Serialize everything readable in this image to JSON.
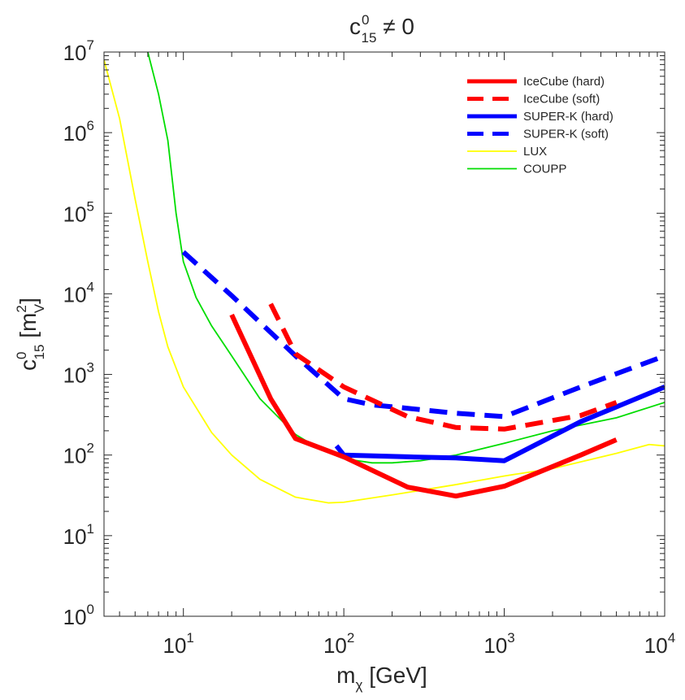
{
  "chart_data": {
    "type": "line",
    "title": {
      "base": "c",
      "sup": "0",
      "sub": "15",
      "rest": " ≠ 0"
    },
    "xlabel": {
      "base": "m",
      "sub": "χ",
      "rest": " [GeV]"
    },
    "ylabel": {
      "base": "c",
      "sup": "0",
      "sub": "15",
      "unit_open": " [m",
      "unit_sup": "2",
      "unit_sub": "V",
      "unit_close": "]"
    },
    "xscale": "log",
    "yscale": "log",
    "xlim": [
      3.2,
      10000
    ],
    "ylim": [
      1,
      10000000
    ],
    "xticks": [
      {
        "value": 10,
        "base": "10",
        "exp": "1"
      },
      {
        "value": 100,
        "base": "10",
        "exp": "2"
      },
      {
        "value": 1000,
        "base": "10",
        "exp": "3"
      },
      {
        "value": 10000,
        "base": "10",
        "exp": "4"
      }
    ],
    "yticks": [
      {
        "value": 1,
        "base": "10",
        "exp": "0"
      },
      {
        "value": 10,
        "base": "10",
        "exp": "1"
      },
      {
        "value": 100,
        "base": "10",
        "exp": "2"
      },
      {
        "value": 1000,
        "base": "10",
        "exp": "3"
      },
      {
        "value": 10000,
        "base": "10",
        "exp": "4"
      },
      {
        "value": 100000,
        "base": "10",
        "exp": "5"
      },
      {
        "value": 1000000,
        "base": "10",
        "exp": "6"
      },
      {
        "value": 10000000,
        "base": "10",
        "exp": "7"
      }
    ],
    "legend_position": "top-right",
    "series": [
      {
        "name": "IceCube (hard)",
        "color": "#ff0000",
        "style": "solid",
        "weight": "thick",
        "x": [
          20,
          35,
          50,
          100,
          250,
          500,
          1000,
          3000,
          5000
        ],
        "y": [
          5500,
          500,
          160,
          95,
          40,
          31,
          41,
          100,
          155
        ]
      },
      {
        "name": "IceCube (soft)",
        "color": "#ff0000",
        "style": "dashed",
        "weight": "thick",
        "x": [
          35,
          50,
          100,
          250,
          500,
          1000,
          3000,
          5000
        ],
        "y": [
          7500,
          1800,
          700,
          300,
          220,
          210,
          310,
          450
        ]
      },
      {
        "name": "SUPER-K (hard)",
        "color": "#0000ff",
        "style": "solid",
        "weight": "thick",
        "x": [
          90,
          100,
          250,
          500,
          1000,
          3000,
          10000
        ],
        "y": [
          130,
          100,
          95,
          92,
          85,
          260,
          700
        ]
      },
      {
        "name": "SUPER-K (soft)",
        "color": "#0000ff",
        "style": "dashed",
        "weight": "thick",
        "x": [
          10,
          20,
          50,
          100,
          150,
          250,
          500,
          1000,
          3000,
          10000
        ],
        "y": [
          33000,
          9500,
          1700,
          500,
          420,
          380,
          330,
          300,
          700,
          1700
        ]
      },
      {
        "name": "LUX",
        "color": "#ffff00",
        "style": "solid",
        "weight": "thin",
        "x": [
          3.2,
          4,
          5,
          6,
          7,
          8,
          10,
          15,
          20,
          30,
          50,
          80,
          100,
          200,
          500,
          1000,
          2000,
          5000,
          8000,
          10000
        ],
        "y": [
          8000000,
          1500000,
          150000,
          25000,
          6000,
          2200,
          700,
          190,
          100,
          50,
          30,
          25.5,
          26,
          32,
          43,
          55,
          68,
          105,
          135,
          130
        ]
      },
      {
        "name": "COUPP",
        "color": "#00dd00",
        "style": "solid",
        "weight": "thin",
        "x": [
          6,
          7,
          8,
          9,
          10,
          12,
          15,
          20,
          30,
          50,
          70,
          100,
          150,
          200,
          300,
          500,
          1000,
          2000,
          5000,
          10000
        ],
        "y": [
          10000000,
          3000000,
          800000,
          100000,
          25000,
          9000,
          4000,
          1700,
          500,
          180,
          120,
          90,
          80,
          80,
          85,
          100,
          140,
          200,
          290,
          450
        ]
      }
    ]
  }
}
